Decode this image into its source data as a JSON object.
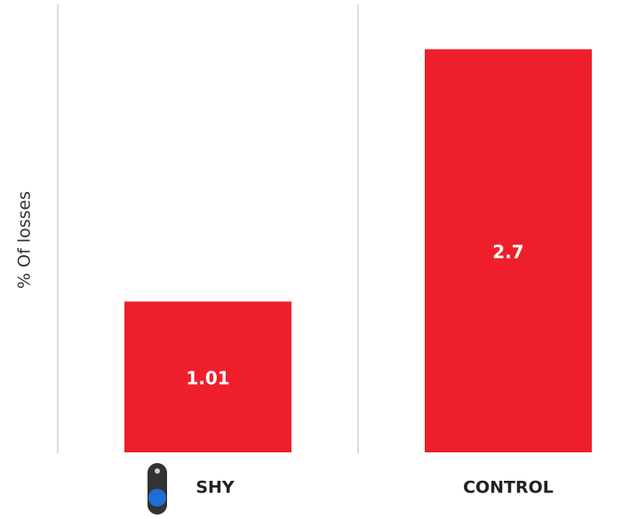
{
  "chart_data": {
    "type": "bar",
    "y_label": "% Of losses",
    "categories": [
      "SHY",
      "CONTROL"
    ],
    "values": [
      1.01,
      2.7
    ],
    "color": "#ee1f2b",
    "ylim": [
      0,
      3
    ]
  }
}
